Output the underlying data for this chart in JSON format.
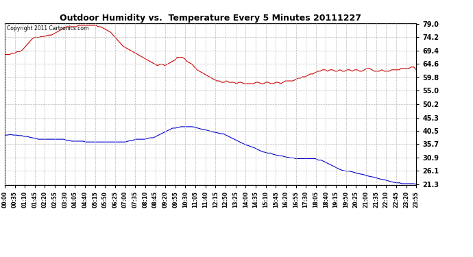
{
  "title": "Outdoor Humidity vs.  Temperature Every 5 Minutes 20111227",
  "copyright_text": "Copyright 2011 Cartronics.com",
  "background_color": "#ffffff",
  "plot_bg_color": "#ffffff",
  "grid_color": "#bbbbbb",
  "yticks_right": [
    21.3,
    26.1,
    30.9,
    35.7,
    40.5,
    45.3,
    50.2,
    55.0,
    59.8,
    64.6,
    69.4,
    74.2,
    79.0
  ],
  "humidity_color": "#cc0000",
  "temperature_color": "#0000cc",
  "humidity_data": [
    68.0,
    68.0,
    68.0,
    68.5,
    68.5,
    69.0,
    69.0,
    69.5,
    70.5,
    71.5,
    72.5,
    73.5,
    74.2,
    74.2,
    74.2,
    74.5,
    74.5,
    74.8,
    75.0,
    75.0,
    75.5,
    76.0,
    76.5,
    77.0,
    77.5,
    78.0,
    78.0,
    78.0,
    78.0,
    78.0,
    78.5,
    78.5,
    78.5,
    78.5,
    78.5,
    78.5,
    78.5,
    78.5,
    78.0,
    78.0,
    77.5,
    77.0,
    76.5,
    76.0,
    75.0,
    74.0,
    73.0,
    72.0,
    71.0,
    70.5,
    70.0,
    69.5,
    69.0,
    68.5,
    68.0,
    67.5,
    67.0,
    66.5,
    66.0,
    65.5,
    65.0,
    64.5,
    64.0,
    64.5,
    64.5,
    64.0,
    64.5,
    65.0,
    65.5,
    66.0,
    67.0,
    67.0,
    67.0,
    66.5,
    65.5,
    65.0,
    64.5,
    63.5,
    62.5,
    62.0,
    61.5,
    61.0,
    60.5,
    60.0,
    59.5,
    59.0,
    58.5,
    58.5,
    58.0,
    58.0,
    58.5,
    58.0,
    58.0,
    58.0,
    57.5,
    58.0,
    58.0,
    57.5,
    57.5,
    57.5,
    57.5,
    57.5,
    58.0,
    58.0,
    57.5,
    57.5,
    58.0,
    58.0,
    57.5,
    57.5,
    58.0,
    58.0,
    57.5,
    58.0,
    58.5,
    58.5,
    58.5,
    58.5,
    59.0,
    59.5,
    59.5,
    60.0,
    60.0,
    60.5,
    61.0,
    61.0,
    61.5,
    62.0,
    62.0,
    62.5,
    62.5,
    62.0,
    62.5,
    62.5,
    62.0,
    62.0,
    62.5,
    62.0,
    62.0,
    62.5,
    62.5,
    62.0,
    62.5,
    62.5,
    62.0,
    62.0,
    62.5,
    63.0,
    63.0,
    62.5,
    62.0,
    62.0,
    62.0,
    62.5,
    62.0,
    62.0,
    62.0,
    62.5,
    62.5,
    62.5,
    62.5,
    63.0,
    63.0,
    63.0,
    63.0,
    63.5,
    63.5,
    62.5
  ],
  "temperature_data": [
    39.0,
    39.0,
    39.2,
    39.0,
    39.0,
    38.8,
    38.8,
    38.5,
    38.5,
    38.2,
    38.0,
    37.8,
    37.5,
    37.5,
    37.5,
    37.5,
    37.5,
    37.5,
    37.5,
    37.5,
    37.5,
    37.5,
    37.2,
    37.0,
    36.8,
    36.8,
    36.8,
    36.8,
    36.8,
    36.5,
    36.5,
    36.5,
    36.5,
    36.5,
    36.5,
    36.5,
    36.5,
    36.5,
    36.5,
    36.5,
    36.5,
    36.5,
    36.5,
    36.5,
    36.8,
    37.0,
    37.2,
    37.5,
    37.5,
    37.5,
    37.5,
    37.8,
    38.0,
    38.0,
    38.5,
    39.0,
    39.5,
    40.0,
    40.5,
    41.0,
    41.5,
    41.5,
    41.8,
    42.0,
    42.0,
    42.0,
    42.0,
    42.0,
    41.8,
    41.5,
    41.2,
    41.0,
    40.8,
    40.5,
    40.2,
    40.0,
    39.8,
    39.5,
    39.5,
    39.0,
    38.5,
    38.0,
    37.5,
    37.0,
    36.5,
    36.0,
    35.5,
    35.2,
    34.8,
    34.5,
    34.0,
    33.5,
    33.0,
    32.8,
    32.5,
    32.5,
    32.0,
    31.8,
    31.5,
    31.5,
    31.2,
    31.0,
    30.8,
    30.8,
    30.5,
    30.5,
    30.5,
    30.5,
    30.5,
    30.5,
    30.5,
    30.5,
    30.0,
    30.0,
    29.5,
    29.0,
    28.5,
    28.0,
    27.5,
    27.0,
    26.5,
    26.2,
    26.0,
    26.0,
    25.8,
    25.5,
    25.2,
    25.0,
    24.8,
    24.5,
    24.2,
    24.0,
    23.8,
    23.5,
    23.2,
    23.0,
    22.8,
    22.5,
    22.2,
    22.0,
    21.8,
    21.8,
    21.5,
    21.5,
    21.5,
    21.5,
    21.5,
    21.3
  ],
  "xtick_labels": [
    "00:00",
    "00:35",
    "01:10",
    "01:45",
    "02:20",
    "02:55",
    "03:30",
    "04:05",
    "04:40",
    "05:15",
    "05:50",
    "06:25",
    "07:00",
    "07:35",
    "08:10",
    "08:45",
    "09:20",
    "09:55",
    "10:30",
    "11:05",
    "11:40",
    "12:15",
    "12:50",
    "13:25",
    "14:00",
    "14:35",
    "15:10",
    "15:45",
    "16:20",
    "16:55",
    "17:30",
    "18:05",
    "18:40",
    "19:15",
    "19:50",
    "20:25",
    "21:00",
    "21:35",
    "22:10",
    "22:45",
    "23:20",
    "23:55"
  ]
}
